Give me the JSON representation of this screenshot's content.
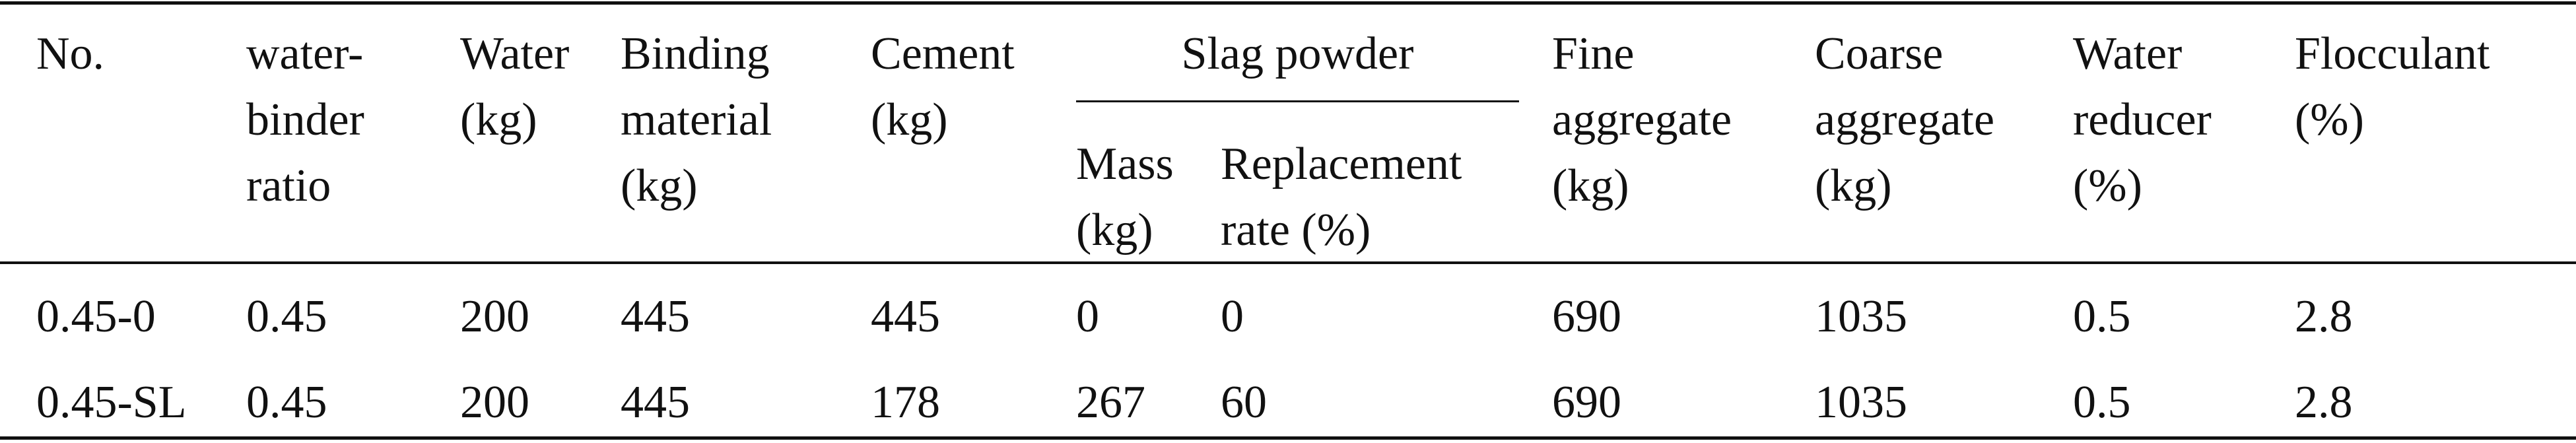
{
  "table": {
    "columns": [
      "No.",
      "water-\nbinder\nratio",
      "Water\n(kg)",
      "Binding\nmaterial\n(kg)",
      "Cement\n(kg)",
      "Fine\naggregate\n(kg)",
      "Coarse\naggregate\n(kg)",
      "Water\nreducer\n(%)",
      "Flocculant\n(%)"
    ],
    "group": {
      "title": "Slag powder",
      "subcolumns": [
        "Mass\n(kg)",
        "Replacement\nrate (%)"
      ]
    },
    "rows": [
      [
        "0.45-0",
        "0.45",
        "200",
        "445",
        "445",
        "0",
        "0",
        "690",
        "1035",
        "0.5",
        "2.8"
      ],
      [
        "0.45-SL",
        "0.45",
        "200",
        "445",
        "178",
        "267",
        "60",
        "690",
        "1035",
        "0.5",
        "2.8"
      ]
    ]
  }
}
